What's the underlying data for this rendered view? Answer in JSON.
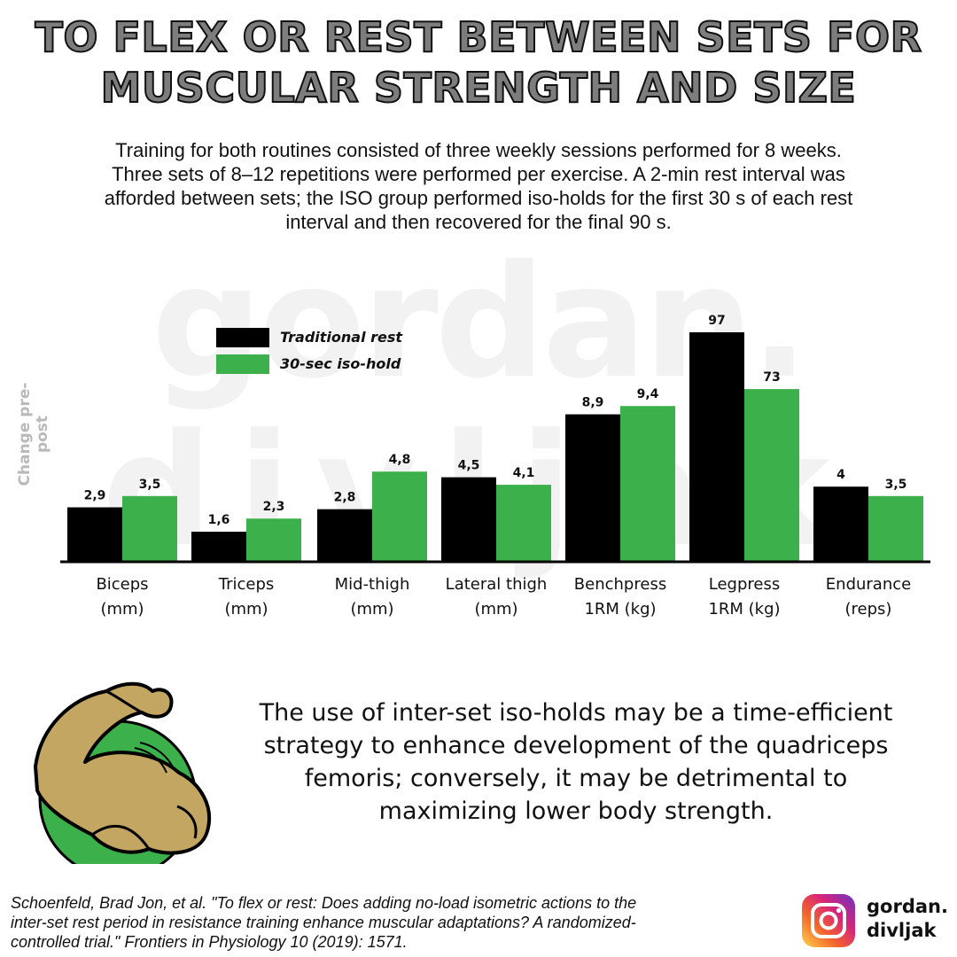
{
  "header": {
    "title_line1": "TO FLEX OR REST BETWEEN SETS FOR",
    "title_line2": "MUSCULAR STRENGTH AND SIZE"
  },
  "intro": {
    "line1": "Training for both routines consisted of three weekly sessions performed for 8 weeks.",
    "line2": "Three sets of 8–12 repetitions were performed per exercise. A 2-min rest interval was",
    "line3": "afforded between sets; the ISO group performed iso-holds for the first 30 s of each rest",
    "line4": "interval and then recovered for the final 90 s."
  },
  "watermark": {
    "line1": "gordan.",
    "line2": "divljak"
  },
  "chart_data": {
    "type": "bar",
    "ylabel": "Change pre-post",
    "legend_position": "top-left",
    "grid": false,
    "categories": [
      [
        "Biceps",
        "(mm)"
      ],
      [
        "Triceps",
        "(mm)"
      ],
      [
        "Mid-thigh",
        "(mm)"
      ],
      [
        "Lateral thigh",
        "(mm)"
      ],
      [
        "Benchpress",
        "1RM (kg)"
      ],
      [
        "Legpress",
        "1RM (kg)"
      ],
      [
        "Endurance",
        "(reps)"
      ]
    ],
    "series": [
      {
        "name": "Traditional rest",
        "color": "#000000",
        "values": [
          2.9,
          1.6,
          2.8,
          4.5,
          8.9,
          97,
          4
        ],
        "labels": [
          "2,9",
          "1,6",
          "2,8",
          "4,5",
          "8,9",
          "97",
          "4"
        ]
      },
      {
        "name": "30-sec iso-hold",
        "color": "#3cb04a",
        "values": [
          3.5,
          2.3,
          4.8,
          4.1,
          9.4,
          73,
          3.5
        ],
        "labels": [
          "3,5",
          "2,3",
          "4,8",
          "4,1",
          "9,4",
          "73",
          "3,5"
        ]
      }
    ]
  },
  "conclusion": {
    "line1": "The use of inter-set iso-holds may be a time-efficient",
    "line2": "strategy to enhance development of the quadriceps",
    "line3": "femoris; conversely, it may be detrimental to",
    "line4": "maximizing lower body strength."
  },
  "citation": {
    "line1": "Schoenfeld, Brad Jon, et al. \"To flex or rest: Does adding no-load isometric actions to the",
    "line2": "inter-set rest period in resistance training enhance muscular adaptations? A randomized-",
    "line3": "controlled trial.\" Frontiers in Physiology 10 (2019): 1571."
  },
  "social": {
    "icon": "instagram-icon",
    "handle_line1": "gordan.",
    "handle_line2": "divljak"
  },
  "colors": {
    "accent_green": "#3cb04a",
    "title_gray": "#7d7d7d",
    "muscle_tan": "#c3a662"
  }
}
